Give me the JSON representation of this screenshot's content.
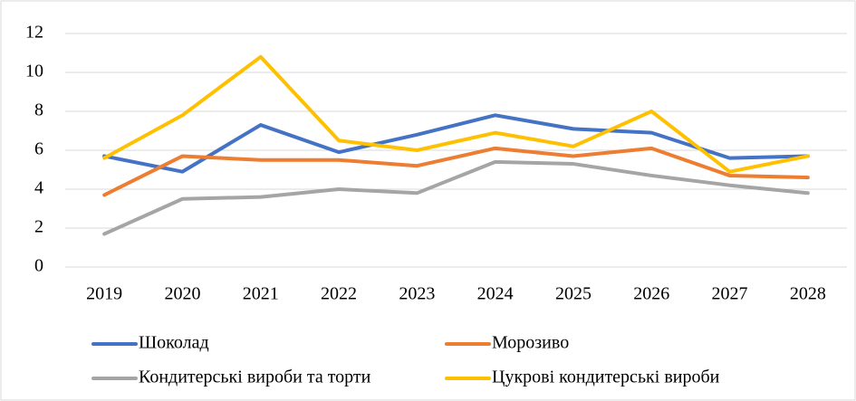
{
  "chart_data": {
    "type": "line",
    "categories": [
      "2019",
      "2020",
      "2021",
      "2022",
      "2023",
      "2024",
      "2025",
      "2026",
      "2027",
      "2028"
    ],
    "series": [
      {
        "name": "Шоколад",
        "color": "#4472c4",
        "values": [
          5.7,
          4.9,
          7.3,
          5.9,
          6.8,
          7.8,
          7.1,
          6.9,
          5.6,
          5.7
        ]
      },
      {
        "name": "Морозиво",
        "color": "#ed7d31",
        "values": [
          3.7,
          5.7,
          5.5,
          5.5,
          5.2,
          6.1,
          5.7,
          6.1,
          4.7,
          4.6
        ]
      },
      {
        "name": "Кондитерські вироби та торти",
        "color": "#a5a5a5",
        "values": [
          1.7,
          3.5,
          3.6,
          4.0,
          3.8,
          5.4,
          5.3,
          4.7,
          4.2,
          3.8
        ]
      },
      {
        "name": "Цукрові кондитерські вироби",
        "color": "#ffc000",
        "values": [
          5.6,
          7.8,
          10.8,
          6.5,
          6.0,
          6.9,
          6.2,
          8.0,
          4.9,
          5.7
        ]
      }
    ],
    "ylim": [
      0,
      12
    ],
    "yticks": [
      0,
      2,
      4,
      6,
      8,
      10,
      12
    ],
    "grid": true,
    "legend": "bottom"
  }
}
